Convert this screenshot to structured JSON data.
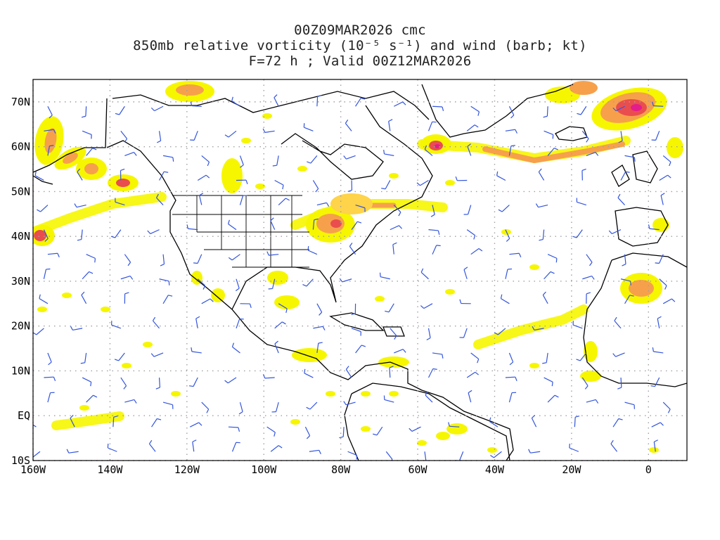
{
  "title": {
    "line1": "00Z09MAR2026 cmc",
    "line2": "850mb relative vorticity (10⁻⁵ s⁻¹) and wind (barb; kt)",
    "line3": "F=72 h ; Valid 00Z12MAR2026"
  },
  "map": {
    "lon_range": [
      -160,
      10
    ],
    "lat_range": [
      -10,
      75
    ],
    "lat_labels": [
      "70N",
      "60N",
      "50N",
      "40N",
      "30N",
      "20N",
      "10N",
      "EQ",
      "10S"
    ],
    "lon_labels": [
      "160W",
      "140W",
      "120W",
      "100W",
      "80W",
      "60W",
      "40W",
      "20W",
      "0"
    ],
    "colors": {
      "shade_light": "#f6f600",
      "shade_mid": "#ffd34a",
      "shade_orange": "#f7a04c",
      "shade_red": "#ea4d4d",
      "shade_max": "#e41b8c",
      "barb": "#3355dd",
      "coast": "#000000",
      "grid": "#a0a0a0"
    }
  }
}
